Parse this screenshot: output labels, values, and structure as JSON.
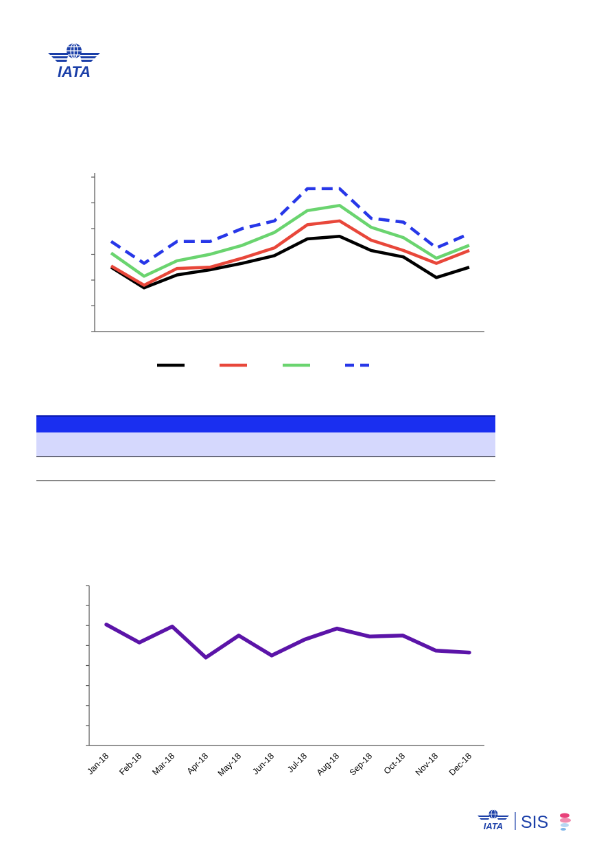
{
  "branding": {
    "top_logo_text": "IATA",
    "bottom_logo_text": "IATA",
    "bottom_logo_product": "SIS",
    "brand_blue": "#1b3fa8",
    "brand_pink": "#e8417a"
  },
  "chart_data": [
    {
      "type": "line",
      "title": "",
      "xlabel": "",
      "ylabel": "",
      "x": [
        1,
        2,
        3,
        4,
        5,
        6,
        7,
        8,
        9,
        10,
        11,
        12
      ],
      "ylim": [
        0,
        60
      ],
      "y_ticks": [
        0,
        10,
        20,
        30,
        40,
        50,
        60
      ],
      "show_tick_labels": false,
      "legend_position": "bottom",
      "series": [
        {
          "color": "#000000",
          "style": "solid",
          "values": [
            25,
            17,
            22,
            24,
            26.5,
            29.5,
            36,
            37,
            31.5,
            29,
            21,
            25
          ]
        },
        {
          "color": "#e8473a",
          "style": "solid",
          "values": [
            25.5,
            18,
            24.5,
            25,
            28.5,
            32.5,
            41.5,
            43,
            35.5,
            31.5,
            26.5,
            31.5
          ]
        },
        {
          "color": "#6ad46f",
          "style": "solid",
          "values": [
            30.5,
            21.5,
            27.5,
            30,
            33.5,
            38.5,
            47,
            49,
            40.5,
            36.5,
            28.5,
            33.5
          ]
        },
        {
          "color": "#2737e8",
          "style": "dashed",
          "values": [
            35,
            26.5,
            35,
            35,
            40,
            43,
            55.5,
            55.5,
            44,
            42.5,
            32.5,
            38
          ]
        }
      ]
    },
    {
      "type": "line",
      "title": "",
      "xlabel": "",
      "ylabel": "",
      "categories": [
        "Jan-18",
        "Feb-18",
        "Mar-18",
        "Apr-18",
        "May-18",
        "Jun-18",
        "Jul-18",
        "Aug-18",
        "Sep-18",
        "Oct-18",
        "Nov-18",
        "Dec-18"
      ],
      "ylim": [
        0,
        8
      ],
      "y_ticks": [
        0,
        1,
        2,
        3,
        4,
        5,
        6,
        7,
        8
      ],
      "show_y_tick_labels": false,
      "series": [
        {
          "color": "#5b14a8",
          "style": "solid",
          "values": [
            6.05,
            5.15,
            5.95,
            4.4,
            5.5,
            4.5,
            5.3,
            5.85,
            5.45,
            5.5,
            4.75,
            4.65
          ]
        }
      ]
    }
  ],
  "table": {
    "header_color": "#1a2ff0",
    "row_light_color": "#d5d8fd",
    "rows": [
      "header",
      "light",
      "white"
    ]
  }
}
